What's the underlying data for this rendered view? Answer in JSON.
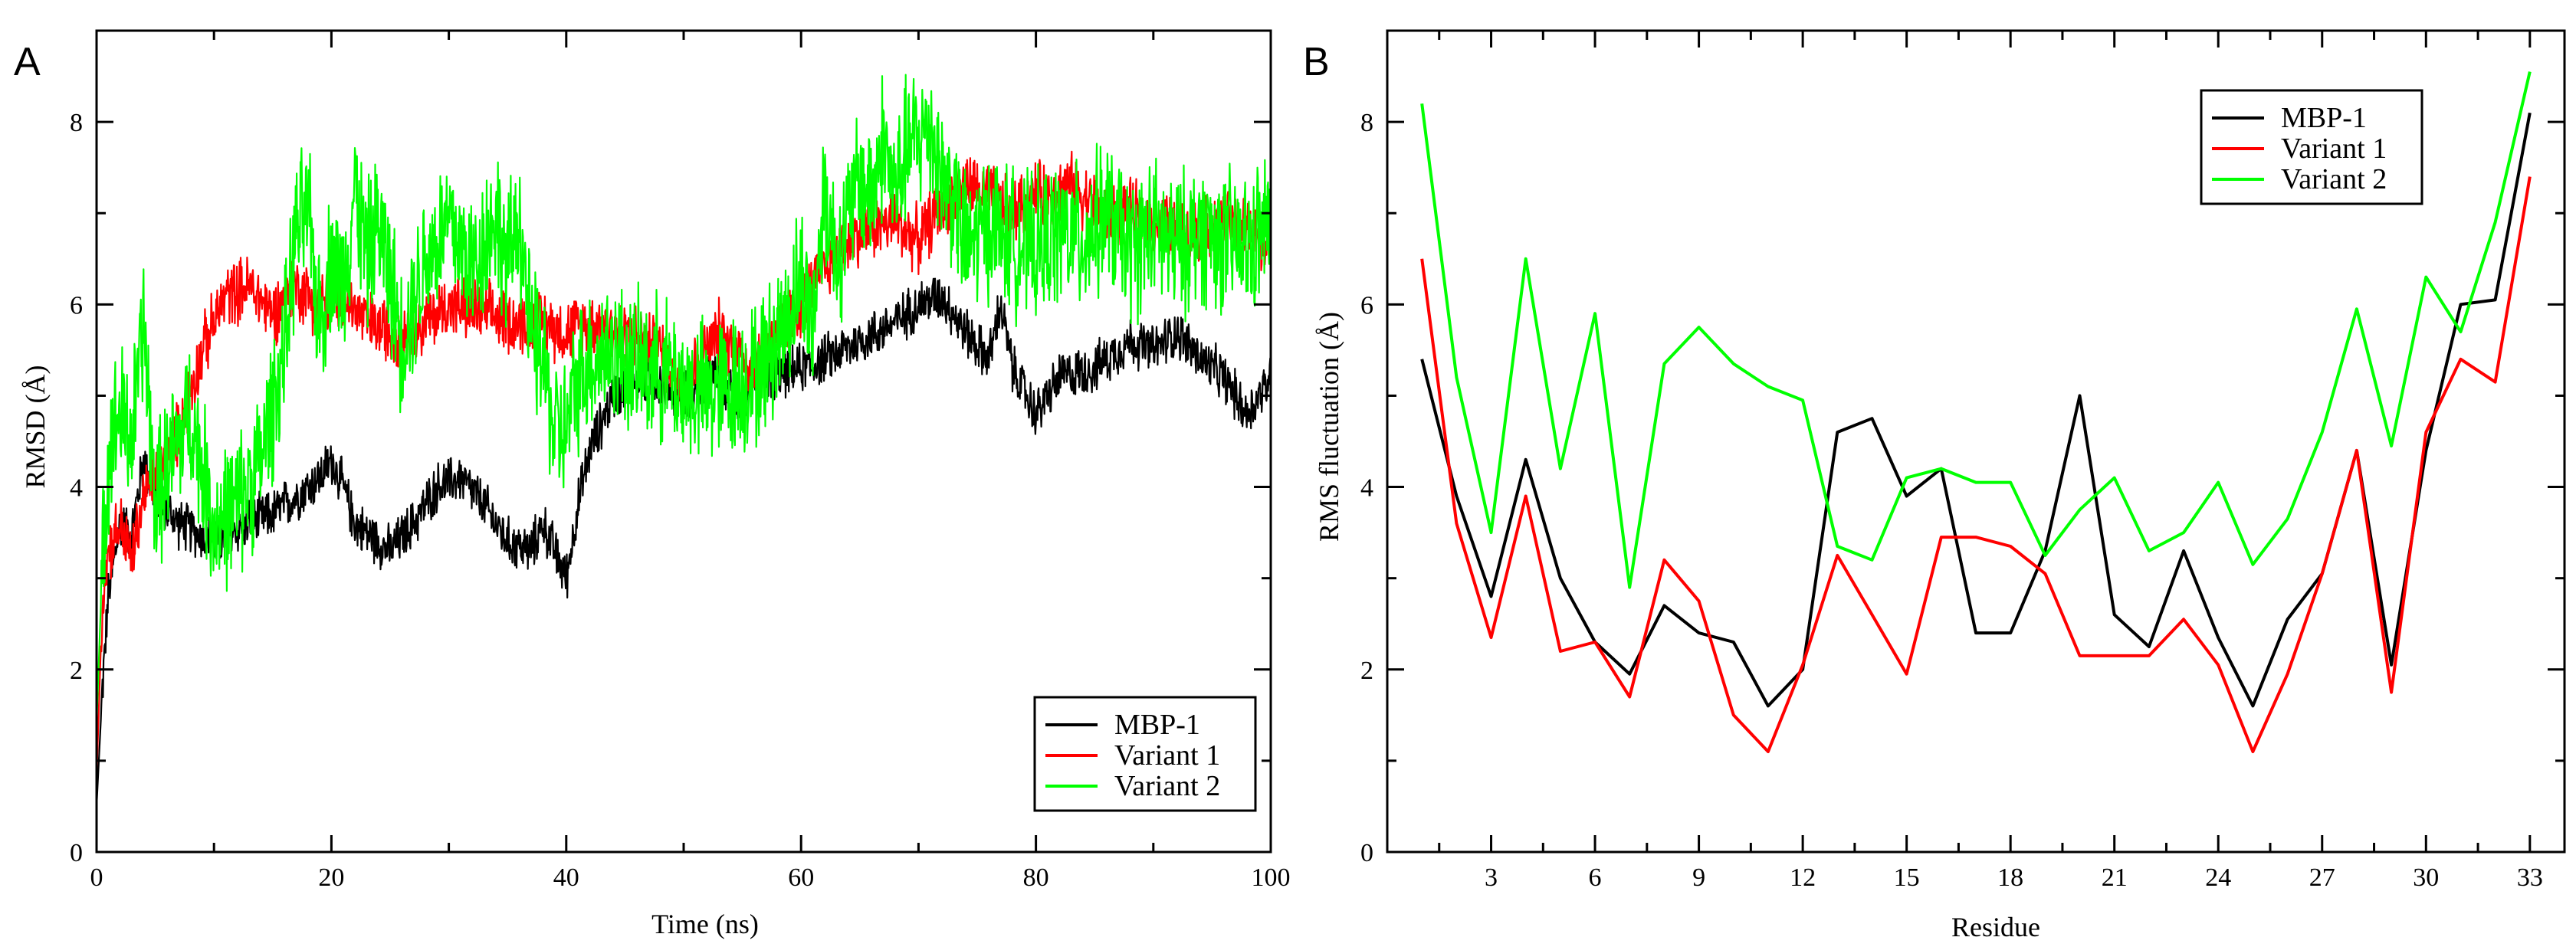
{
  "chart_data": [
    {
      "panel": "A",
      "type": "line",
      "title": "",
      "xlabel": "Time (ns)",
      "ylabel": "RMSD (Å)",
      "xlim": [
        0,
        100
      ],
      "ylim": [
        0,
        9
      ],
      "xticks": [
        0,
        20,
        40,
        60,
        80,
        100
      ],
      "yticks": [
        0,
        2,
        4,
        6,
        8
      ],
      "legend_position": "bottom-right",
      "series": [
        {
          "name": "MBP-1",
          "color": "#000000",
          "x": [
            0,
            0.5,
            1,
            2,
            3,
            4,
            5,
            7,
            10,
            13,
            15,
            17,
            19,
            20,
            21,
            22,
            23,
            25,
            27,
            29,
            31,
            33,
            35,
            37,
            38,
            39,
            40,
            41,
            42,
            43,
            44,
            45,
            47,
            50,
            53,
            55,
            57,
            60,
            62,
            65,
            68,
            70,
            72,
            74,
            76,
            77,
            78,
            80,
            82,
            85,
            88,
            90,
            92,
            94,
            96,
            98,
            100
          ],
          "y": [
            0.5,
            1.8,
            2.8,
            3.6,
            3.5,
            4.3,
            3.9,
            3.6,
            3.4,
            3.6,
            3.7,
            3.9,
            4.1,
            4.3,
            4.0,
            3.6,
            3.5,
            3.3,
            3.6,
            4.0,
            4.1,
            3.8,
            3.4,
            3.3,
            3.6,
            3.3,
            3.0,
            3.8,
            4.4,
            4.7,
            5.0,
            5.1,
            5.2,
            5.0,
            5.2,
            4.9,
            5.2,
            5.3,
            5.4,
            5.6,
            5.8,
            6.0,
            6.1,
            5.7,
            5.4,
            6.0,
            5.3,
            4.8,
            5.2,
            5.3,
            5.6,
            5.5,
            5.7,
            5.4,
            5.2,
            4.8,
            5.2
          ]
        },
        {
          "name": "Variant 1",
          "color": "#ff0000",
          "x": [
            0,
            0.5,
            1,
            2,
            3,
            4,
            5,
            7,
            9,
            11,
            13,
            15,
            17,
            19,
            21,
            23,
            25,
            27,
            30,
            33,
            36,
            38,
            40,
            42,
            45,
            48,
            50,
            53,
            56,
            58,
            60,
            62,
            65,
            68,
            70,
            72,
            74,
            76,
            78,
            80,
            83,
            86,
            88,
            90,
            93,
            96,
            98,
            100
          ],
          "y": [
            0.8,
            2.8,
            3.3,
            3.6,
            3.2,
            3.9,
            4.1,
            4.6,
            5.5,
            6.1,
            6.2,
            5.9,
            6.2,
            6.0,
            6.1,
            5.8,
            5.7,
            5.7,
            6.0,
            5.9,
            5.8,
            5.8,
            5.7,
            5.8,
            5.7,
            5.5,
            5.1,
            5.7,
            5.3,
            5.7,
            6.0,
            6.4,
            6.8,
            6.9,
            6.7,
            7.1,
            7.3,
            7.2,
            7.0,
            7.2,
            7.3,
            7.0,
            7.0,
            6.9,
            6.8,
            6.9,
            6.8,
            6.7
          ]
        },
        {
          "name": "Variant 2",
          "color": "#00ff00",
          "x": [
            0,
            0.5,
            1,
            2,
            3,
            4,
            5,
            6,
            8,
            10,
            12,
            14,
            16,
            17,
            18,
            19,
            20,
            21,
            22,
            23,
            24,
            25,
            26,
            28,
            30,
            32,
            34,
            35,
            36,
            37,
            38,
            39,
            40,
            41,
            42,
            44,
            46,
            48,
            50,
            52,
            54,
            56,
            58,
            60,
            61,
            62,
            63,
            64,
            65,
            66,
            67,
            68,
            69,
            70,
            71,
            72,
            73,
            74,
            76,
            78,
            80,
            82,
            84,
            86,
            88,
            90,
            92,
            94,
            96,
            98,
            100
          ],
          "y": [
            1.4,
            3.2,
            4.4,
            4.8,
            4.5,
            5.8,
            3.8,
            4.2,
            4.8,
            3.6,
            3.8,
            4.3,
            5.5,
            6.8,
            7.0,
            5.8,
            6.5,
            6.2,
            7.3,
            6.5,
            6.9,
            6.3,
            5.6,
            6.5,
            6.9,
            6.4,
            7.0,
            6.4,
            7.0,
            5.6,
            5.4,
            4.6,
            4.6,
            5.2,
            5.4,
            5.5,
            5.3,
            5.3,
            5.1,
            5.0,
            5.1,
            5.2,
            5.6,
            6.3,
            5.8,
            7.3,
            6.5,
            6.9,
            7.4,
            7.2,
            7.8,
            7.2,
            7.7,
            7.8,
            8.0,
            7.4,
            7.2,
            6.6,
            6.9,
            6.7,
            6.6,
            6.8,
            6.7,
            7.0,
            6.6,
            6.8,
            6.6,
            6.8,
            6.7,
            6.6,
            6.9
          ]
        }
      ]
    },
    {
      "panel": "B",
      "type": "line",
      "title": "",
      "xlabel": "Residue",
      "ylabel": "RMS fluctuation (Å)",
      "xlim": [
        0,
        34
      ],
      "ylim": [
        0,
        9
      ],
      "xticks": [
        3,
        6,
        9,
        12,
        15,
        18,
        21,
        24,
        27,
        30,
        33
      ],
      "yticks": [
        0,
        2,
        4,
        6,
        8
      ],
      "legend_position": "top-right",
      "categories": [
        1,
        2,
        3,
        4,
        5,
        6,
        7,
        8,
        9,
        10,
        11,
        12,
        13,
        14,
        15,
        16,
        17,
        18,
        19,
        20,
        21,
        22,
        23,
        24,
        25,
        26,
        27,
        28,
        29,
        30,
        31,
        32,
        33
      ],
      "series": [
        {
          "name": "MBP-1",
          "color": "#000000",
          "values": [
            5.4,
            3.9,
            2.8,
            4.3,
            3.0,
            2.3,
            1.95,
            2.7,
            2.4,
            2.3,
            1.6,
            2.0,
            4.6,
            4.75,
            3.9,
            4.2,
            2.4,
            2.4,
            3.3,
            5.0,
            2.6,
            2.25,
            3.3,
            2.35,
            1.6,
            2.55,
            3.05,
            4.4,
            2.05,
            4.4,
            6.0,
            6.05,
            8.1
          ]
        },
        {
          "name": "Variant 1",
          "color": "#ff0000",
          "values": [
            6.5,
            3.6,
            2.35,
            3.9,
            2.2,
            2.3,
            1.7,
            3.2,
            2.75,
            1.5,
            1.1,
            2.05,
            3.25,
            2.6,
            1.95,
            3.45,
            3.45,
            3.35,
            3.05,
            2.15,
            2.15,
            2.15,
            2.55,
            2.05,
            1.1,
            1.95,
            3.05,
            4.4,
            1.75,
            4.6,
            5.4,
            5.15,
            7.4
          ]
        },
        {
          "name": "Variant 2",
          "color": "#00ff00",
          "values": [
            8.2,
            5.2,
            3.5,
            6.5,
            4.2,
            5.9,
            2.9,
            5.35,
            5.75,
            5.35,
            5.1,
            4.95,
            3.35,
            3.2,
            4.1,
            4.2,
            4.05,
            4.05,
            3.25,
            3.75,
            4.1,
            3.3,
            3.5,
            4.05,
            3.15,
            3.65,
            4.6,
            5.95,
            4.45,
            6.3,
            5.7,
            6.9,
            8.55
          ]
        }
      ]
    }
  ]
}
